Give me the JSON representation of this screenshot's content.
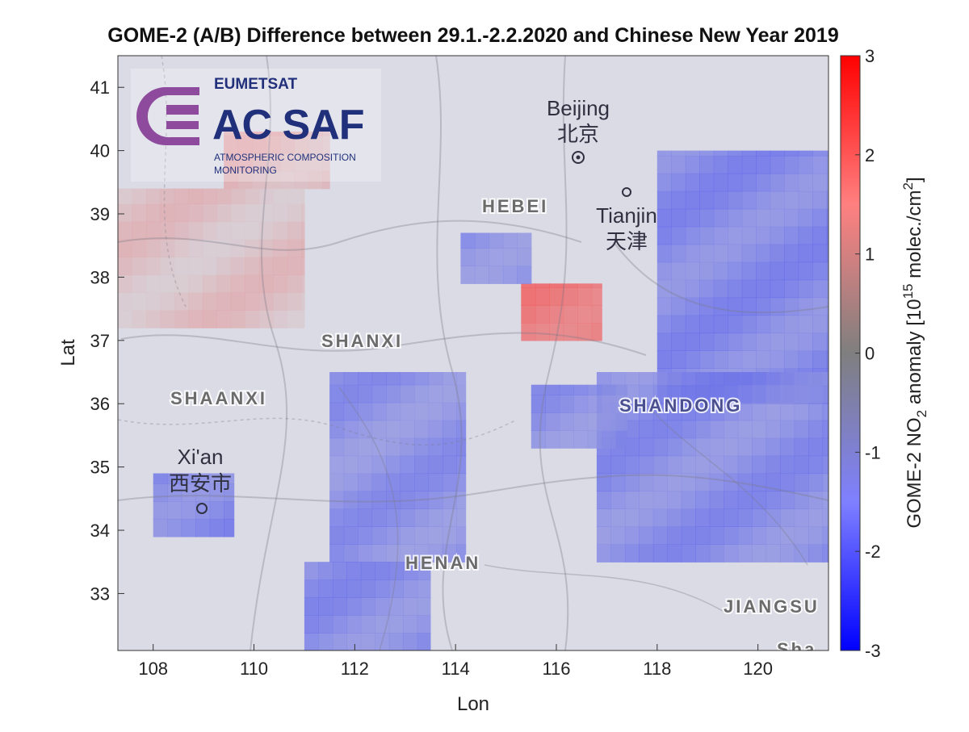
{
  "chart_data": {
    "type": "heatmap",
    "title": "GOME-2 (A/B) Difference between 29.1.-2.2.2020 and Chinese New Year 2019",
    "xlabel": "Lon",
    "ylabel": "Lat",
    "xlim": [
      107.3,
      121.4
    ],
    "ylim": [
      32.1,
      41.5
    ],
    "xticks": [
      "108",
      "110",
      "112",
      "114",
      "116",
      "118",
      "120"
    ],
    "yticks": [
      "33",
      "34",
      "35",
      "36",
      "37",
      "38",
      "39",
      "40",
      "41"
    ],
    "colorbar": {
      "label": "GOME-2 NO2 anomaly [10^15 molec./cm^2]",
      "label_prefix": "GOME-2 NO",
      "label_sub": "2",
      "label_mid": " anomaly [10",
      "label_sup": "15",
      "label_suffix": " molec./cm",
      "label_sup2": "2",
      "label_close": "]",
      "range": [
        -3,
        3
      ],
      "ticks": [
        "3",
        "2",
        "1",
        "0",
        "-1",
        "-2",
        "-3"
      ],
      "colormap": [
        "#0000ff",
        "#8080ff",
        "#808080",
        "#ff8080",
        "#ff0000"
      ]
    },
    "grid": false,
    "anomaly_regions": [
      {
        "lon": [
          115.3,
          116.9
        ],
        "lat": [
          37.0,
          37.9
        ],
        "value": 2.2
      },
      {
        "lon": [
          109.4,
          111.5
        ],
        "lat": [
          39.4,
          40.3
        ],
        "value": 0.7
      },
      {
        "lon": [
          107.3,
          111.0
        ],
        "lat": [
          37.2,
          39.4
        ],
        "value": 0.4
      },
      {
        "lon": [
          118.0,
          121.4
        ],
        "lat": [
          36.0,
          40.0
        ],
        "value": -1.8
      },
      {
        "lon": [
          116.8,
          121.4
        ],
        "lat": [
          33.5,
          36.5
        ],
        "value": -1.7
      },
      {
        "lon": [
          111.5,
          114.2
        ],
        "lat": [
          33.5,
          36.5
        ],
        "value": -1.6
      },
      {
        "lon": [
          111.0,
          113.5
        ],
        "lat": [
          32.1,
          33.5
        ],
        "value": -1.7
      },
      {
        "lon": [
          114.1,
          115.5
        ],
        "lat": [
          37.9,
          38.7
        ],
        "value": -1.6
      },
      {
        "lon": [
          108.0,
          109.6
        ],
        "lat": [
          33.9,
          34.9
        ],
        "value": -1.8
      },
      {
        "lon": [
          115.5,
          117.4
        ],
        "lat": [
          35.3,
          36.3
        ],
        "value": -1.6
      }
    ]
  },
  "map_labels": {
    "beijing_en": "Beijing",
    "beijing_zh": "北京",
    "tianjin_en": "Tianjin",
    "tianjin_zh": "天津",
    "xian_en": "Xi'an",
    "xian_zh": "西安市",
    "hebei": "HEBEI",
    "shanxi": "SHANXI",
    "shaanxi": "SHAANXI",
    "shandong": "SHANDONG",
    "henan": "HENAN",
    "jiangsu": "JIANGSU",
    "edge_partial": "Sha"
  },
  "logo": {
    "org": "EUMETSAT",
    "name": "AC SAF",
    "sub1": "ATMOSPHERIC COMPOSITION",
    "sub2": "MONITORING",
    "icon": "ac-saf-swoosh-icon",
    "color": "#21307a",
    "icon_color": "#8e4a9c"
  }
}
